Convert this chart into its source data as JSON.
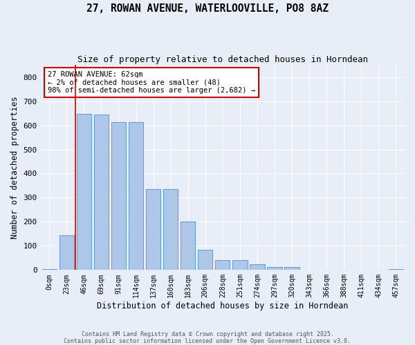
{
  "title": "27, ROWAN AVENUE, WATERLOOVILLE, PO8 8AZ",
  "subtitle": "Size of property relative to detached houses in Horndean",
  "xlabel": "Distribution of detached houses by size in Horndean",
  "ylabel": "Number of detached properties",
  "bar_labels": [
    "0sqm",
    "23sqm",
    "46sqm",
    "69sqm",
    "91sqm",
    "114sqm",
    "137sqm",
    "160sqm",
    "183sqm",
    "206sqm",
    "228sqm",
    "251sqm",
    "274sqm",
    "297sqm",
    "320sqm",
    "343sqm",
    "366sqm",
    "388sqm",
    "411sqm",
    "434sqm",
    "457sqm"
  ],
  "bar_heights": [
    5,
    145,
    648,
    645,
    612,
    612,
    337,
    337,
    200,
    85,
    42,
    42,
    25,
    12,
    13,
    0,
    0,
    0,
    0,
    0,
    3
  ],
  "bar_color": "#aec6e8",
  "bar_edge_color": "#5b9bd5",
  "annotation_text": "27 ROWAN AVENUE: 62sqm\n← 2% of detached houses are smaller (48)\n98% of semi-detached houses are larger (2,682) →",
  "annotation_box_color": "#ffffff",
  "annotation_box_edge_color": "#cc0000",
  "vline_x": 1.5,
  "vline_color": "#cc0000",
  "ylim": [
    0,
    850
  ],
  "yticks": [
    0,
    100,
    200,
    300,
    400,
    500,
    600,
    700,
    800
  ],
  "background_color": "#e8eef8",
  "grid_color": "#ffffff",
  "footer_line1": "Contains HM Land Registry data © Crown copyright and database right 2025.",
  "footer_line2": "Contains public sector information licensed under the Open Government Licence v3.0."
}
